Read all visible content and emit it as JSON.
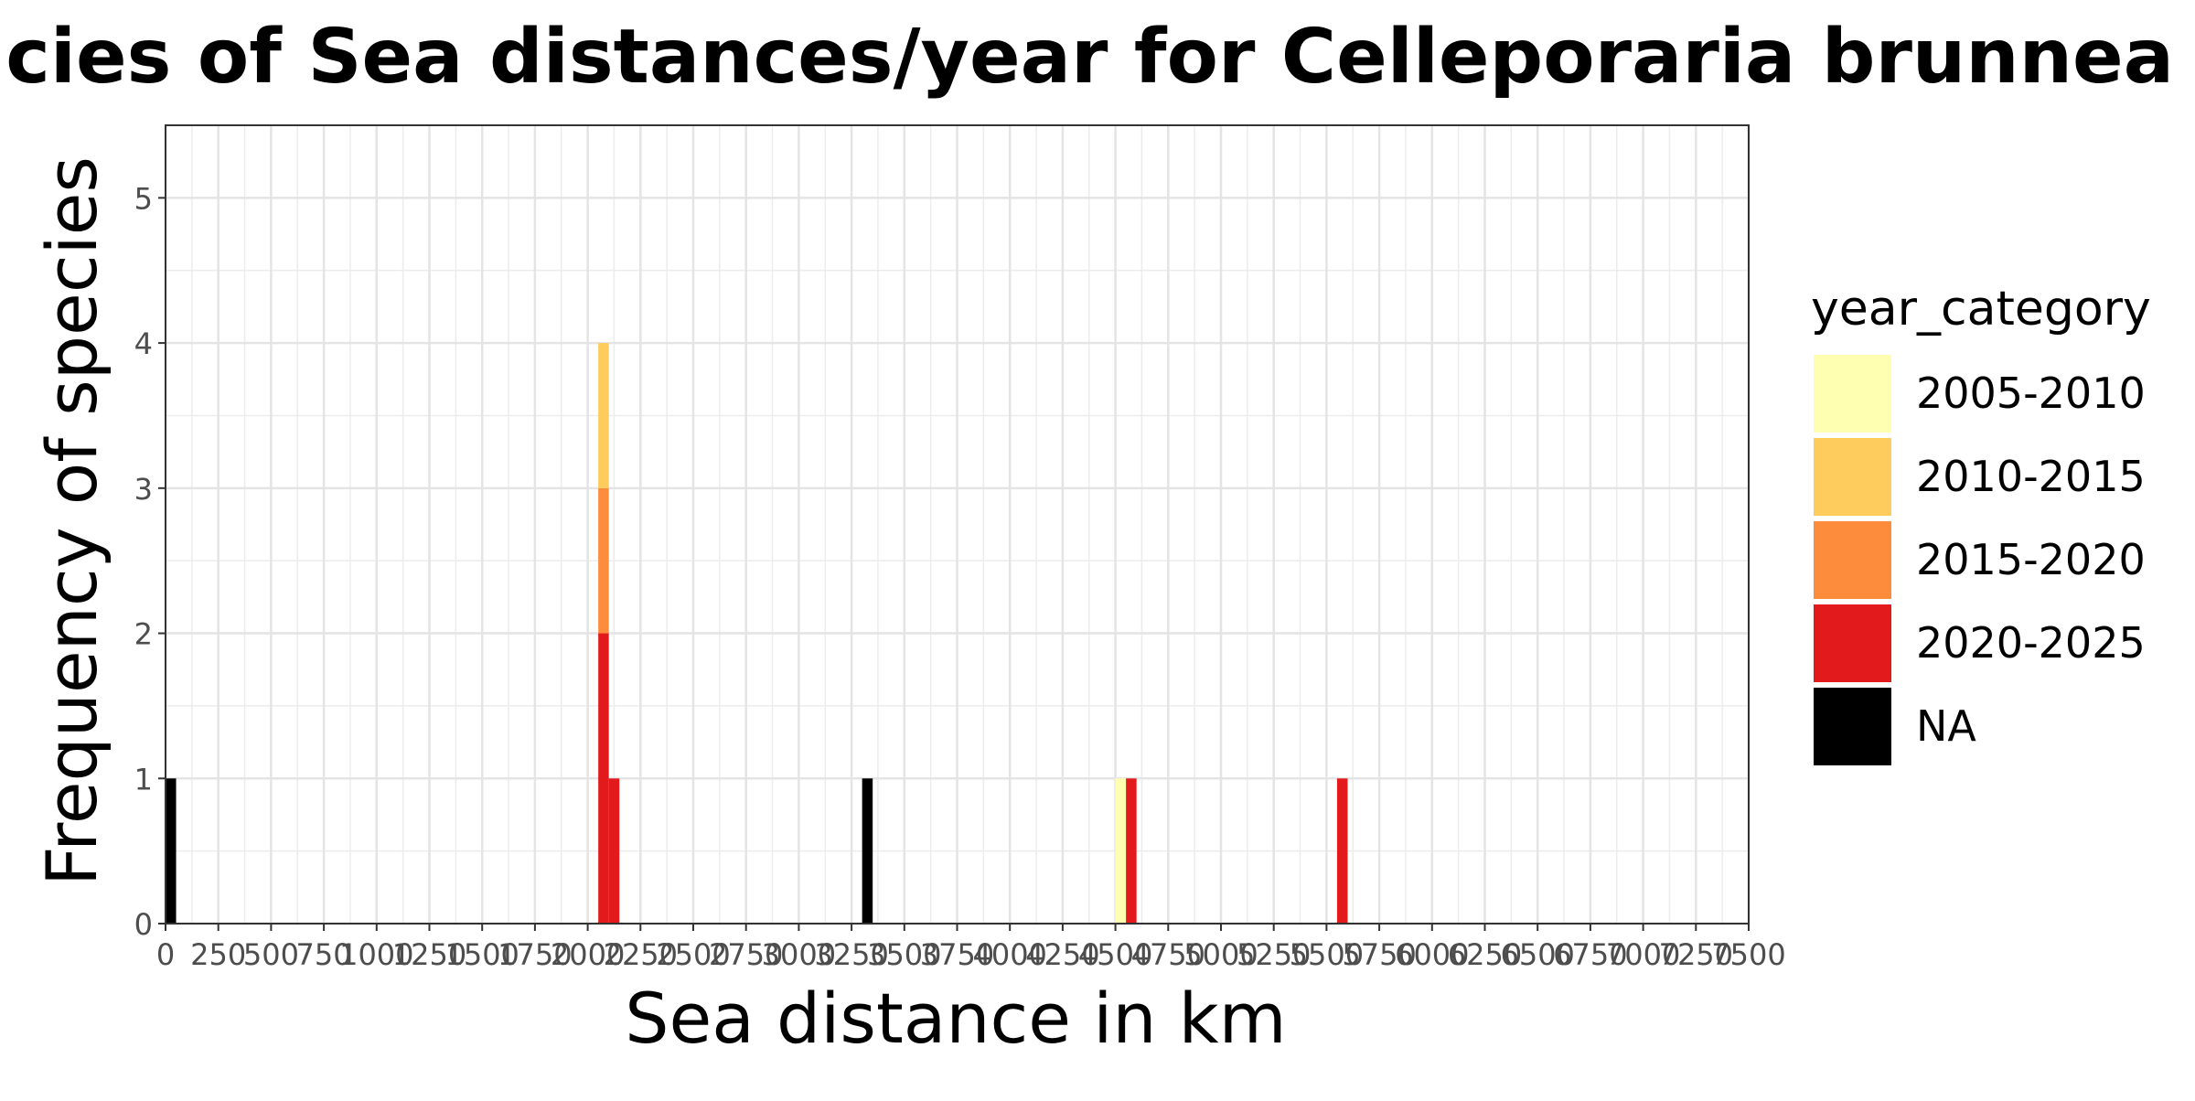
{
  "chart_data": {
    "type": "bar",
    "stacked": true,
    "title": "Frequencies of Sea distances/year for Celleporaria brunnea in Crete",
    "xlabel": "Sea distance in km",
    "ylabel": "Frequency of species",
    "xlim": [
      0,
      7500
    ],
    "ylim": [
      0,
      5.5
    ],
    "bin_width": 50,
    "x_ticks": [
      0,
      250,
      500,
      750,
      1000,
      1250,
      1500,
      1750,
      2000,
      2250,
      2500,
      2750,
      3000,
      3250,
      3500,
      3750,
      4000,
      4250,
      4500,
      4750,
      5000,
      5250,
      5500,
      5750,
      6000,
      6250,
      6500,
      6750,
      7000,
      7250,
      7500
    ],
    "x_tick_labels": [
      "0",
      "250",
      "500",
      "750",
      "1000",
      "1250",
      "1500",
      "1750",
      "2000",
      "2250",
      "2500",
      "2750",
      "3000",
      "3250",
      "3500",
      "3750",
      "4000",
      "4250",
      "4500",
      "4750",
      "5000",
      "5250",
      "5500",
      "5750",
      "6000",
      "6250",
      "6500",
      "6750",
      "7000",
      "7250",
      "7500"
    ],
    "y_ticks": [
      0,
      1,
      2,
      3,
      4,
      5
    ],
    "y_tick_labels": [
      "0",
      "1",
      "2",
      "3",
      "4",
      "5"
    ],
    "grid": true,
    "legend_position": "right",
    "legend_title": "year_category",
    "series": [
      {
        "name": "2005-2010",
        "color": "#FFFFB2"
      },
      {
        "name": "2010-2015",
        "color": "#FECC5C"
      },
      {
        "name": "2015-2020",
        "color": "#FD8D3C"
      },
      {
        "name": "2020-2025",
        "color": "#E31A1C"
      },
      {
        "name": "NA",
        "color": "#000000"
      }
    ],
    "bars": [
      {
        "x": 25,
        "counts": {
          "NA": 1
        }
      },
      {
        "x": 2075,
        "counts": {
          "2020-2025": 2,
          "2015-2020": 1,
          "2010-2015": 1
        }
      },
      {
        "x": 2125,
        "counts": {
          "2020-2025": 1
        }
      },
      {
        "x": 3325,
        "counts": {
          "NA": 1
        }
      },
      {
        "x": 4525,
        "counts": {
          "2005-2010": 1
        }
      },
      {
        "x": 4575,
        "counts": {
          "2020-2025": 1
        }
      },
      {
        "x": 5575,
        "counts": {
          "2020-2025": 1
        }
      }
    ]
  }
}
